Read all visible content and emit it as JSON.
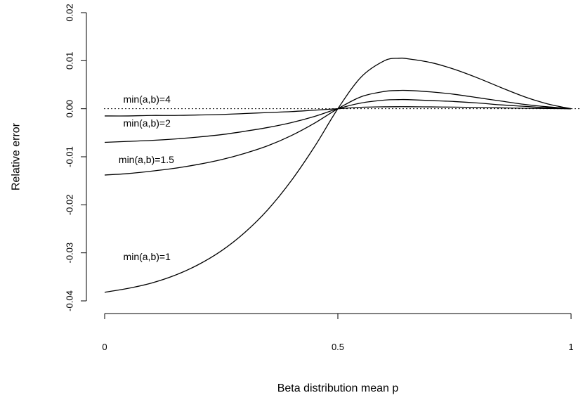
{
  "chart_data": {
    "type": "line",
    "xlabel": "Beta distribution mean p",
    "ylabel": "Relative error",
    "xlim": [
      0,
      1
    ],
    "ylim": [
      -0.04,
      0.02
    ],
    "x_ticks": [
      {
        "value": 0,
        "label": "0"
      },
      {
        "value": 0.5,
        "label": "0.5"
      },
      {
        "value": 1,
        "label": "1"
      }
    ],
    "y_ticks": [
      {
        "value": -0.04,
        "label": "-0.04"
      },
      {
        "value": -0.03,
        "label": "-0.03"
      },
      {
        "value": -0.02,
        "label": "-0.02"
      },
      {
        "value": -0.01,
        "label": "-0.01"
      },
      {
        "value": 0,
        "label": "0.00"
      },
      {
        "value": 0.01,
        "label": "0.01"
      },
      {
        "value": 0.02,
        "label": "0.02"
      }
    ],
    "reference_line": {
      "y": 0,
      "style": "dotted"
    },
    "x": [
      0,
      0.05,
      0.1,
      0.15,
      0.2,
      0.25,
      0.3,
      0.35,
      0.4,
      0.45,
      0.5,
      0.55,
      0.6,
      0.63,
      0.65,
      0.7,
      0.75,
      0.8,
      0.85,
      0.9,
      0.95,
      1
    ],
    "series": [
      {
        "label": "min(a,b)=1",
        "label_at": [
          0.04,
          -0.0315
        ],
        "values": [
          -0.0382,
          -0.0374,
          -0.0363,
          -0.0347,
          -0.0325,
          -0.0296,
          -0.0258,
          -0.021,
          -0.015,
          -0.0079,
          0.0,
          0.0066,
          0.01,
          0.0105,
          0.0104,
          0.0096,
          0.0082,
          0.0064,
          0.0044,
          0.0025,
          0.001,
          0.0
        ]
      },
      {
        "label": "min(a,b)=1.5",
        "label_at": [
          0.03,
          -0.0113
        ],
        "values": [
          -0.0138,
          -0.0135,
          -0.013,
          -0.0124,
          -0.0116,
          -0.0106,
          -0.0093,
          -0.0077,
          -0.0056,
          -0.003,
          0.0,
          0.0025,
          0.0036,
          0.0038,
          0.0038,
          0.0035,
          0.003,
          0.0023,
          0.0016,
          0.0009,
          0.0004,
          0.0
        ]
      },
      {
        "label": "min(a,b)=2",
        "label_at": [
          0.04,
          -0.0037
        ],
        "values": [
          -0.007,
          -0.0068,
          -0.0066,
          -0.0063,
          -0.0059,
          -0.0054,
          -0.0047,
          -0.0039,
          -0.0029,
          -0.0016,
          0.0,
          0.0012,
          0.0018,
          0.0019,
          0.0019,
          0.0017,
          0.0015,
          0.0012,
          0.0008,
          0.0005,
          0.0002,
          0.0
        ]
      },
      {
        "label": "min(a,b)=4",
        "label_at": [
          0.04,
          0.0013
        ],
        "values": [
          -0.0015,
          -0.0015,
          -0.0014,
          -0.0014,
          -0.0013,
          -0.0012,
          -0.001,
          -0.0008,
          -0.0006,
          -0.0003,
          0.0,
          0.0003,
          0.0004,
          0.00042,
          0.00042,
          0.00038,
          0.00033,
          0.00026,
          0.00018,
          0.0001,
          4e-05,
          0.0
        ]
      }
    ]
  }
}
